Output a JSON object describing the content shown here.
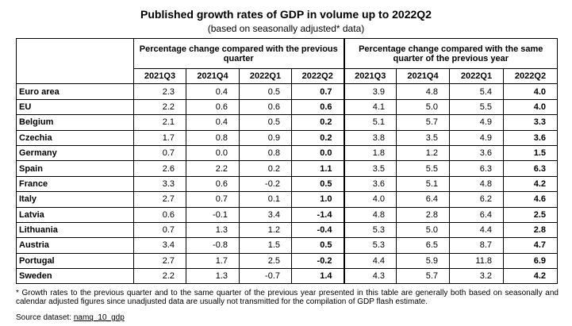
{
  "title": "Published growth rates of GDP in volume up to 2022Q2",
  "subtitle": "(based on seasonally adjusted* data)",
  "table": {
    "group_headers": [
      "Percentage change compared with the previous quarter",
      "Percentage change compared with the same quarter of the previous year"
    ],
    "quarters": [
      "2021Q3",
      "2021Q4",
      "2022Q1",
      "2022Q2",
      "2021Q3",
      "2021Q4",
      "2022Q1",
      "2022Q2"
    ],
    "rows": [
      {
        "country": "Euro area",
        "values": [
          "2.3",
          "0.4",
          "0.5",
          "0.7",
          "3.9",
          "4.8",
          "5.4",
          "4.0"
        ]
      },
      {
        "country": "EU",
        "values": [
          "2.2",
          "0.6",
          "0.6",
          "0.6",
          "4.1",
          "5.0",
          "5.5",
          "4.0"
        ]
      },
      {
        "country": "Belgium",
        "values": [
          "2.1",
          "0.4",
          "0.5",
          "0.2",
          "5.1",
          "5.7",
          "4.9",
          "3.3"
        ]
      },
      {
        "country": "Czechia",
        "values": [
          "1.7",
          "0.8",
          "0.9",
          "0.2",
          "3.8",
          "3.5",
          "4.9",
          "3.6"
        ]
      },
      {
        "country": "Germany",
        "values": [
          "0.7",
          "0.0",
          "0.8",
          "0.0",
          "1.8",
          "1.2",
          "3.6",
          "1.5"
        ]
      },
      {
        "country": "Spain",
        "values": [
          "2.6",
          "2.2",
          "0.2",
          "1.1",
          "3.5",
          "5.5",
          "6.3",
          "6.3"
        ]
      },
      {
        "country": "France",
        "values": [
          "3.3",
          "0.6",
          "-0.2",
          "0.5",
          "3.6",
          "5.1",
          "4.8",
          "4.2"
        ]
      },
      {
        "country": "Italy",
        "values": [
          "2.7",
          "0.7",
          "0.1",
          "1.0",
          "4.0",
          "6.4",
          "6.2",
          "4.6"
        ]
      },
      {
        "country": "Latvia",
        "values": [
          "0.6",
          "-0.1",
          "3.4",
          "-1.4",
          "4.8",
          "2.8",
          "6.4",
          "2.5"
        ]
      },
      {
        "country": "Lithuania",
        "values": [
          "0.7",
          "1.3",
          "1.2",
          "-0.4",
          "5.3",
          "5.0",
          "4.4",
          "2.8"
        ]
      },
      {
        "country": "Austria",
        "values": [
          "3.4",
          "-0.8",
          "1.5",
          "0.5",
          "5.3",
          "6.5",
          "8.7",
          "4.7"
        ]
      },
      {
        "country": "Portugal",
        "values": [
          "2.7",
          "1.7",
          "2.5",
          "-0.2",
          "4.4",
          "5.9",
          "11.8",
          "6.9"
        ]
      },
      {
        "country": "Sweden",
        "values": [
          "2.2",
          "1.3",
          "-0.7",
          "1.4",
          "4.3",
          "5.7",
          "3.2",
          "4.2"
        ]
      }
    ]
  },
  "footnote": "* Growth rates to the previous quarter and to the same quarter of the previous year presented in this table are generally both based on seasonally and calendar adjusted figures since unadjusted data are usually not transmitted for the compilation of GDP flash estimate.",
  "source": {
    "label": "Source dataset:",
    "link": "namq_10_gdp"
  }
}
